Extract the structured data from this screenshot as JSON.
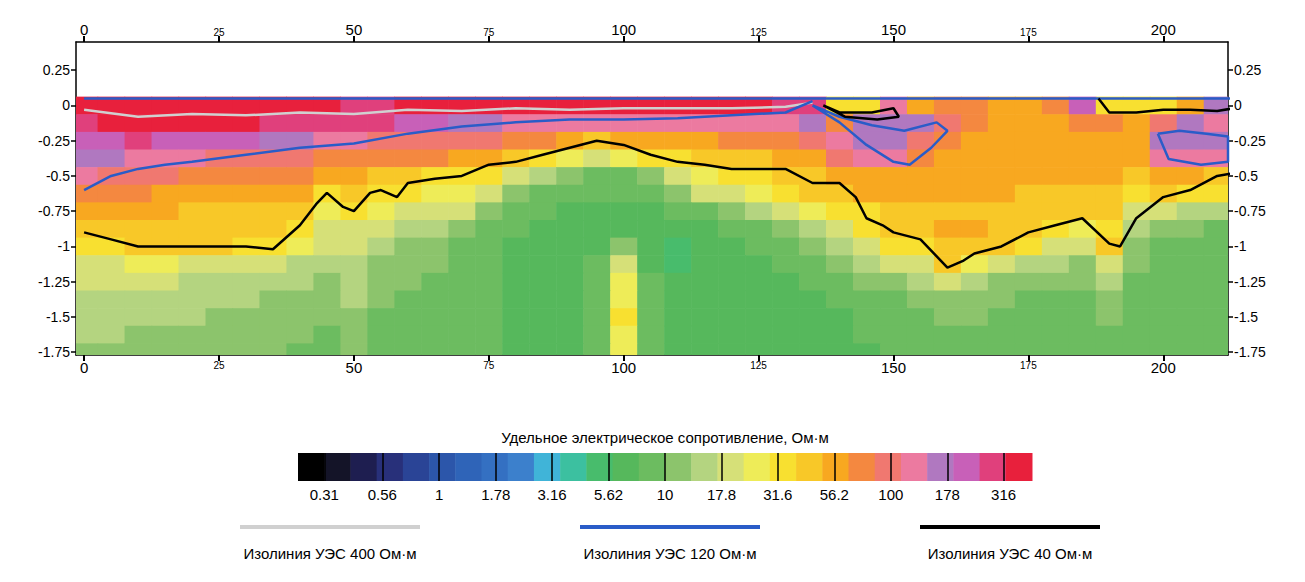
{
  "chart_data": {
    "type": "heatmap",
    "xlim": [
      -1.5,
      212
    ],
    "xticks": [
      0,
      25,
      50,
      75,
      100,
      125,
      150,
      175,
      200
    ],
    "ylim": [
      -1.77,
      0.45
    ],
    "yticks": [
      0.25,
      0,
      -0.25,
      -0.5,
      -0.75,
      -1,
      -1.25,
      -1.5,
      -1.75
    ],
    "grid": false,
    "legend": "bottom",
    "x": [
      0,
      5,
      10,
      15,
      20,
      25,
      30,
      35,
      40,
      45,
      50,
      55,
      60,
      65,
      70,
      75,
      80,
      85,
      90,
      95,
      100,
      105,
      110,
      115,
      120,
      125,
      130,
      135,
      140,
      145,
      150,
      155,
      160,
      165,
      170,
      175,
      180,
      185,
      190,
      195,
      200,
      205,
      210
    ],
    "y": [
      0,
      -0.125,
      -0.25,
      -0.375,
      -0.5,
      -0.625,
      -0.75,
      -0.875,
      -1,
      -1.125,
      -1.25,
      -1.375,
      -1.5,
      -1.625,
      -1.75
    ],
    "values": [
      [
        330,
        350,
        360,
        350,
        340,
        350,
        350,
        360,
        350,
        340,
        300,
        320,
        350,
        360,
        350,
        350,
        360,
        350,
        350,
        350,
        360,
        350,
        350,
        340,
        350,
        330,
        320,
        250,
        35,
        35,
        120,
        60,
        80,
        70,
        60,
        60,
        80,
        200,
        35,
        30,
        30,
        60,
        150
      ],
      [
        300,
        330,
        350,
        350,
        340,
        330,
        330,
        320,
        300,
        280,
        260,
        250,
        220,
        200,
        160,
        150,
        130,
        120,
        120,
        115,
        115,
        120,
        120,
        125,
        130,
        130,
        140,
        150,
        80,
        150,
        180,
        150,
        90,
        70,
        60,
        55,
        60,
        80,
        70,
        60,
        90,
        150,
        130
      ],
      [
        220,
        240,
        250,
        240,
        220,
        200,
        200,
        180,
        160,
        130,
        120,
        110,
        100,
        95,
        90,
        85,
        80,
        70,
        55,
        45,
        50,
        55,
        60,
        60,
        65,
        65,
        70,
        90,
        130,
        160,
        170,
        90,
        70,
        60,
        55,
        55,
        55,
        55,
        50,
        60,
        150,
        160,
        180
      ],
      [
        160,
        160,
        140,
        125,
        115,
        105,
        100,
        90,
        85,
        80,
        80,
        75,
        70,
        65,
        60,
        55,
        45,
        35,
        28,
        22,
        25,
        30,
        38,
        42,
        45,
        48,
        50,
        60,
        90,
        130,
        130,
        70,
        60,
        55,
        55,
        55,
        55,
        55,
        50,
        55,
        130,
        140,
        130
      ],
      [
        140,
        110,
        95,
        85,
        80,
        75,
        75,
        70,
        65,
        60,
        55,
        45,
        40,
        35,
        38,
        30,
        22,
        15,
        12,
        10,
        10,
        12,
        20,
        25,
        30,
        38,
        40,
        45,
        55,
        60,
        60,
        55,
        55,
        55,
        55,
        55,
        55,
        50,
        50,
        45,
        55,
        50,
        42
      ],
      [
        80,
        70,
        65,
        60,
        60,
        58,
        55,
        55,
        50,
        38,
        42,
        35,
        30,
        28,
        26,
        20,
        12,
        9,
        8,
        8,
        8,
        9,
        12,
        18,
        20,
        25,
        30,
        40,
        42,
        50,
        50,
        50,
        50,
        50,
        50,
        48,
        48,
        45,
        45,
        38,
        40,
        35,
        30
      ],
      [
        60,
        55,
        50,
        50,
        48,
        45,
        45,
        42,
        45,
        28,
        32,
        25,
        22,
        20,
        18,
        12,
        9,
        8,
        7,
        7,
        7,
        7,
        8,
        10,
        12,
        14,
        18,
        25,
        30,
        38,
        45,
        45,
        48,
        48,
        45,
        42,
        42,
        42,
        40,
        22,
        18,
        15,
        14
      ],
      [
        42,
        45,
        45,
        45,
        42,
        42,
        42,
        42,
        38,
        22,
        22,
        18,
        15,
        14,
        12,
        9,
        8,
        7,
        6,
        6,
        6,
        6,
        6,
        7,
        9,
        10,
        12,
        15,
        20,
        30,
        45,
        45,
        55,
        50,
        48,
        42,
        32,
        28,
        35,
        15,
        12,
        11,
        10
      ],
      [
        32,
        36,
        40,
        40,
        40,
        40,
        38,
        36,
        25,
        18,
        18,
        15,
        13,
        12,
        10,
        8,
        7,
        6,
        6,
        6,
        12,
        6,
        5.5,
        6,
        7,
        8,
        9,
        11,
        14,
        20,
        35,
        38,
        48,
        42,
        40,
        35,
        22,
        20,
        40,
        12,
        10,
        9,
        9
      ],
      [
        22,
        22,
        24,
        24,
        22,
        20,
        20,
        18,
        17,
        15,
        15,
        13,
        12,
        11,
        10,
        8,
        7,
        6,
        6,
        8,
        18,
        7,
        5.5,
        6,
        6,
        7,
        8,
        9,
        11,
        14,
        18,
        22,
        42,
        28,
        20,
        16,
        14,
        13,
        20,
        11,
        9,
        9,
        8
      ],
      [
        18,
        18,
        18,
        18,
        17,
        16,
        16,
        15,
        14,
        13,
        14,
        12,
        11,
        10,
        10,
        8,
        7,
        6,
        6,
        9,
        25,
        8,
        6,
        6,
        6,
        7,
        7,
        8,
        9,
        11,
        13,
        15,
        18,
        16,
        13,
        12,
        11,
        11,
        14,
        10,
        9,
        8,
        8
      ],
      [
        16,
        16,
        15,
        15,
        15,
        14,
        14,
        13,
        13,
        12,
        14,
        11,
        10,
        10,
        9,
        8,
        7,
        6,
        6,
        10,
        28,
        9,
        6,
        6,
        6,
        6,
        7,
        7,
        8,
        9,
        10,
        11,
        12,
        12,
        11,
        10,
        10,
        10,
        12,
        9,
        8,
        8,
        8
      ],
      [
        15,
        15,
        14,
        14,
        14,
        13,
        13,
        12,
        12,
        11,
        13,
        10,
        10,
        9,
        9,
        8,
        7,
        6,
        6,
        10,
        30,
        9,
        6,
        6,
        6,
        6,
        6,
        7,
        7,
        8,
        9,
        10,
        11,
        11,
        10,
        10,
        9,
        9,
        11,
        9,
        8,
        8,
        8
      ],
      [
        14,
        14,
        13,
        13,
        13,
        12,
        12,
        11,
        11,
        10,
        12,
        10,
        9,
        9,
        8,
        8,
        7,
        6,
        6,
        10,
        28,
        9,
        6,
        6,
        6,
        6,
        6,
        7,
        7,
        8,
        8,
        9,
        10,
        10,
        10,
        9,
        9,
        9,
        10,
        8,
        8,
        8,
        8
      ],
      [
        13,
        13,
        12,
        12,
        12,
        11,
        11,
        11,
        10,
        10,
        11,
        9,
        9,
        8,
        8,
        8,
        7,
        6,
        6,
        9,
        25,
        8,
        6,
        6,
        6,
        6,
        6,
        6,
        7,
        7,
        8,
        8,
        9,
        9,
        9,
        9,
        8,
        8,
        9,
        8,
        8,
        8,
        8
      ]
    ],
    "colorbar": {
      "title": "Удельное электрическое сопротивление, Ом·м",
      "log": true,
      "range": [
        0.237,
        422
      ],
      "ticks": [
        0.31,
        0.56,
        1,
        1.78,
        3.16,
        5.62,
        10,
        17.8,
        31.6,
        56.2,
        100,
        178,
        316
      ],
      "colors": [
        "#000000",
        "#141428",
        "#1e1e50",
        "#28307a",
        "#2a4496",
        "#2c56aa",
        "#2f64b8",
        "#3470c2",
        "#3c80cc",
        "#40b4d8",
        "#3cc0a0",
        "#48bc6c",
        "#56b85c",
        "#6cbc60",
        "#8cc46c",
        "#b4d480",
        "#d6e078",
        "#eeec58",
        "#f8e030",
        "#f8c828",
        "#f8a820",
        "#f48840",
        "#f07870",
        "#ec7aa0",
        "#b078c0",
        "#c860b8",
        "#e0407c",
        "#e8203c"
      ]
    },
    "isolines": [
      {
        "name": "Изолиния УЭС 400 Ом·м",
        "color": "#d0d0d0",
        "segments": [
          {
            "x": [
              0,
              10,
              20,
              30,
              40,
              50,
              60,
              70,
              80,
              90,
              100,
              110,
              120,
              130,
              135
            ],
            "y": [
              -0.03,
              -0.08,
              -0.06,
              -0.07,
              -0.05,
              -0.06,
              -0.03,
              -0.04,
              -0.02,
              -0.03,
              -0.02,
              -0.02,
              -0.02,
              -0.01,
              0.02
            ]
          }
        ]
      },
      {
        "name": "Изолиния УЭС 120 Ом·м",
        "color": "#2a5cc8",
        "segments": [
          {
            "x": [
              0,
              213
            ],
            "y": [
              0.05,
              0.05
            ]
          },
          {
            "x": [
              0,
              5,
              10,
              15,
              20,
              30,
              40,
              50,
              60,
              70,
              80,
              90,
              100,
              110,
              120,
              130,
              135
            ],
            "y": [
              -0.6,
              -0.5,
              -0.45,
              -0.42,
              -0.4,
              -0.35,
              -0.3,
              -0.27,
              -0.2,
              -0.15,
              -0.12,
              -0.1,
              -0.1,
              -0.09,
              -0.07,
              -0.05,
              0.03
            ]
          },
          {
            "x": [
              135,
              140,
              145,
              150,
              153,
              157,
              160,
              158,
              152,
              146,
              140,
              135
            ],
            "y": [
              0,
              -0.12,
              -0.28,
              -0.4,
              -0.42,
              -0.3,
              -0.18,
              -0.12,
              -0.18,
              -0.14,
              -0.08,
              0
            ]
          },
          {
            "x": [
              199,
              203,
              208,
              212,
              212,
              207,
              201,
              199
            ],
            "y": [
              -0.2,
              -0.18,
              -0.2,
              -0.22,
              -0.4,
              -0.42,
              -0.38,
              -0.2
            ]
          }
        ]
      },
      {
        "name": "Изолиния УЭС 40 Ом·м",
        "color": "#000000",
        "segments": [
          {
            "x": [
              0,
              5,
              10,
              20,
              30,
              35,
              40,
              43,
              45,
              48,
              50,
              53,
              55,
              58,
              60,
              65,
              70,
              75,
              80,
              85,
              90,
              95,
              100,
              105,
              110,
              115,
              120,
              125,
              130,
              135,
              140,
              143,
              145,
              148,
              150,
              155,
              160,
              163,
              165,
              170,
              175,
              180,
              185,
              190,
              192,
              195,
              200,
              205,
              210,
              213
            ],
            "y": [
              -0.9,
              -0.95,
              -1,
              -1,
              -1,
              -1.02,
              -0.85,
              -0.7,
              -0.62,
              -0.72,
              -0.75,
              -0.62,
              -0.6,
              -0.65,
              -0.55,
              -0.52,
              -0.5,
              -0.42,
              -0.4,
              -0.35,
              -0.3,
              -0.25,
              -0.28,
              -0.35,
              -0.4,
              -0.42,
              -0.45,
              -0.45,
              -0.45,
              -0.55,
              -0.55,
              -0.65,
              -0.8,
              -0.85,
              -0.9,
              -0.95,
              -1.15,
              -1.1,
              -1.05,
              -1,
              -0.9,
              -0.85,
              -0.8,
              -0.98,
              -1,
              -0.8,
              -0.65,
              -0.6,
              -0.5,
              -0.48
            ]
          },
          {
            "x": [
              137,
              140,
              146,
              150,
              151,
              147,
              141,
              137
            ],
            "y": [
              0,
              -0.05,
              -0.05,
              -0.02,
              -0.08,
              -0.1,
              -0.08,
              0
            ]
          },
          {
            "x": [
              188,
              190,
              195,
              200,
              205,
              210,
              213
            ],
            "y": [
              0.05,
              -0.05,
              -0.05,
              -0.03,
              -0.03,
              -0.04,
              -0.02
            ]
          }
        ]
      }
    ]
  }
}
